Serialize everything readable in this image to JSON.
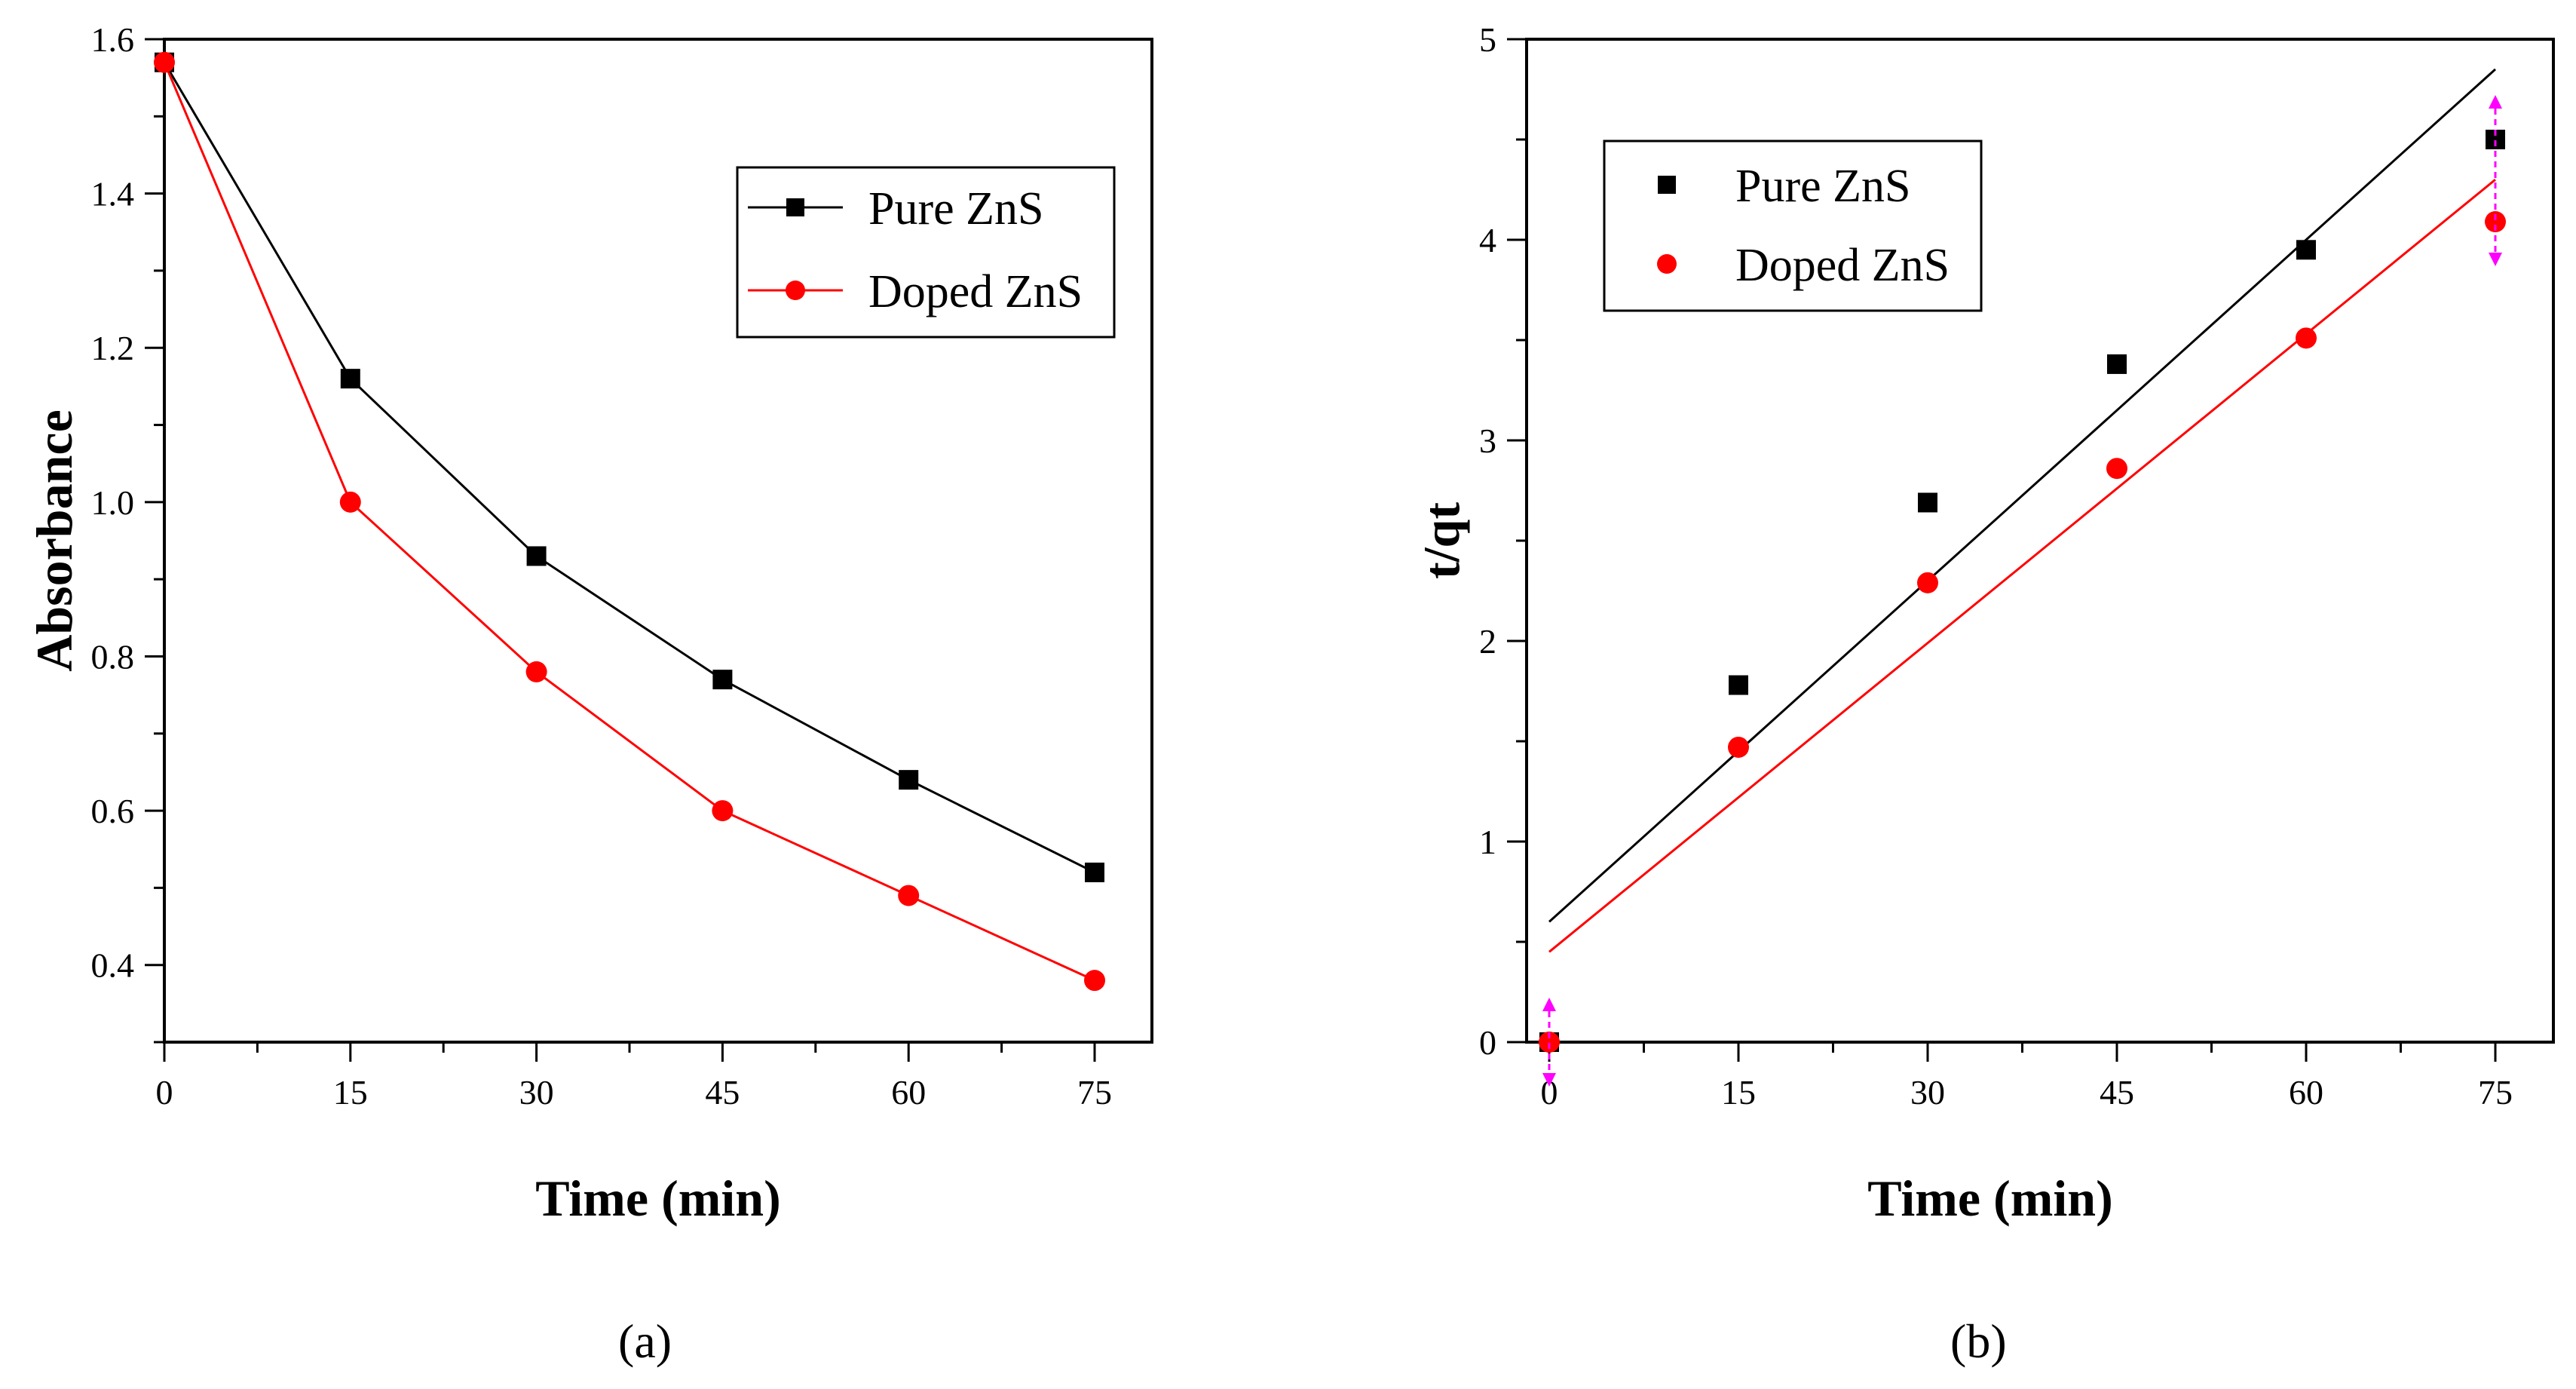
{
  "chart_data": [
    {
      "type": "line",
      "panel_label": "(a)",
      "xlabel": "Time (min)",
      "ylabel": "Absorbance",
      "xlim": [
        0,
        80
      ],
      "ylim": [
        0.3,
        1.6
      ],
      "xticks": [
        0,
        15,
        30,
        45,
        60,
        75
      ],
      "yticks": [
        0.4,
        0.6,
        0.8,
        1.0,
        1.2,
        1.4,
        1.6
      ],
      "ytick_labels": [
        "0.4",
        "0.6",
        "0.8",
        "1.0",
        "1.2",
        "1.4",
        "1.6"
      ],
      "legend_position": "top-right",
      "x": [
        0,
        15,
        30,
        45,
        60,
        75
      ],
      "series": [
        {
          "name": "Pure ZnS",
          "color": "#000000",
          "marker": "square",
          "values": [
            1.57,
            1.16,
            0.93,
            0.77,
            0.64,
            0.52
          ]
        },
        {
          "name": "Doped ZnS",
          "color": "#ff0000",
          "marker": "circle",
          "values": [
            1.57,
            1.0,
            0.78,
            0.6,
            0.49,
            0.38
          ]
        }
      ]
    },
    {
      "type": "scatter",
      "panel_label": "(b)",
      "xlabel": "Time (min)",
      "ylabel": "t/qt",
      "xlim": [
        0,
        80
      ],
      "ylim": [
        0,
        5
      ],
      "xticks": [
        0,
        15,
        30,
        45,
        60,
        75
      ],
      "yticks": [
        0,
        1,
        2,
        3,
        4,
        5
      ],
      "ytick_labels": [
        "0",
        "1",
        "2",
        "3",
        "4",
        "5"
      ],
      "legend_position": "top-left",
      "x": [
        0,
        15,
        30,
        45,
        60,
        75
      ],
      "series": [
        {
          "name": "Pure ZnS",
          "color": "#000000",
          "marker": "square",
          "values": [
            0,
            1.78,
            2.69,
            3.38,
            3.95,
            4.5
          ],
          "fit": {
            "x": [
              0,
              75
            ],
            "y": [
              0.6,
              4.85
            ]
          }
        },
        {
          "name": "Doped ZnS",
          "color": "#ff0000",
          "marker": "circle",
          "values": [
            0,
            1.47,
            2.29,
            2.86,
            3.51,
            4.09
          ],
          "fit": {
            "x": [
              0,
              75
            ],
            "y": [
              0.45,
              4.3
            ]
          }
        }
      ],
      "highlight_color": "#ff00ff"
    }
  ]
}
